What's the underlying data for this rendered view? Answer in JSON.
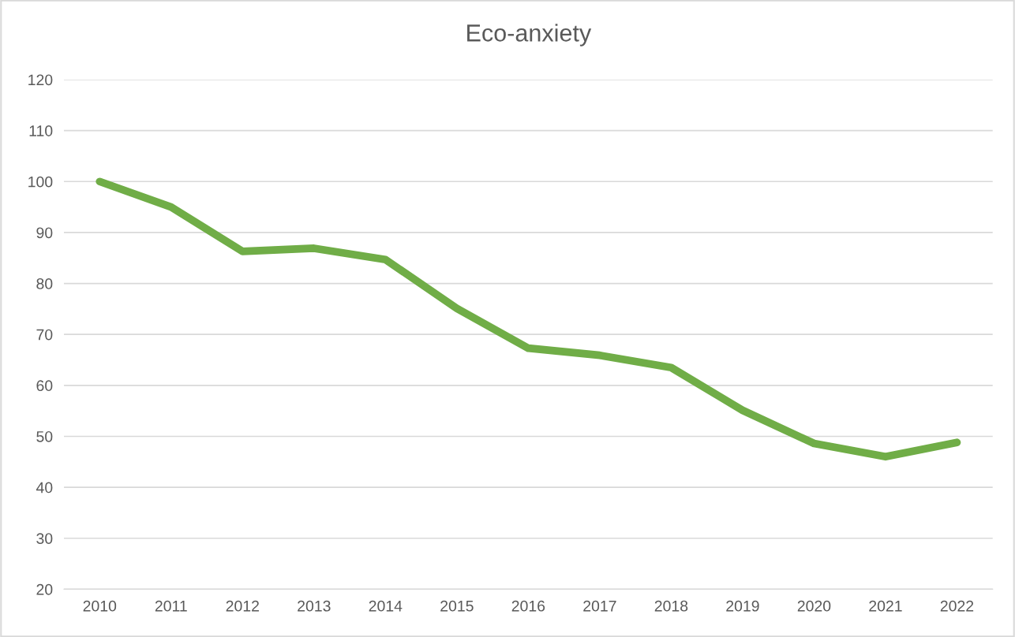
{
  "chart_data": {
    "type": "line",
    "title": "Eco-anxiety",
    "categories": [
      "2010",
      "2011",
      "2012",
      "2013",
      "2014",
      "2015",
      "2016",
      "2017",
      "2018",
      "2019",
      "2020",
      "2021",
      "2022"
    ],
    "series": [
      {
        "color": "#70ad47",
        "values": [
          100,
          95,
          86.3,
          86.9,
          84.7,
          75.1,
          67.3,
          65.9,
          63.5,
          55.1,
          48.6,
          46,
          48.8
        ]
      }
    ],
    "ylim": [
      20,
      120
    ],
    "yticks": [
      20,
      30,
      40,
      50,
      60,
      70,
      80,
      90,
      100,
      110,
      120
    ],
    "grid": "y",
    "legend": false,
    "marker": "none",
    "line_style": "solid"
  }
}
